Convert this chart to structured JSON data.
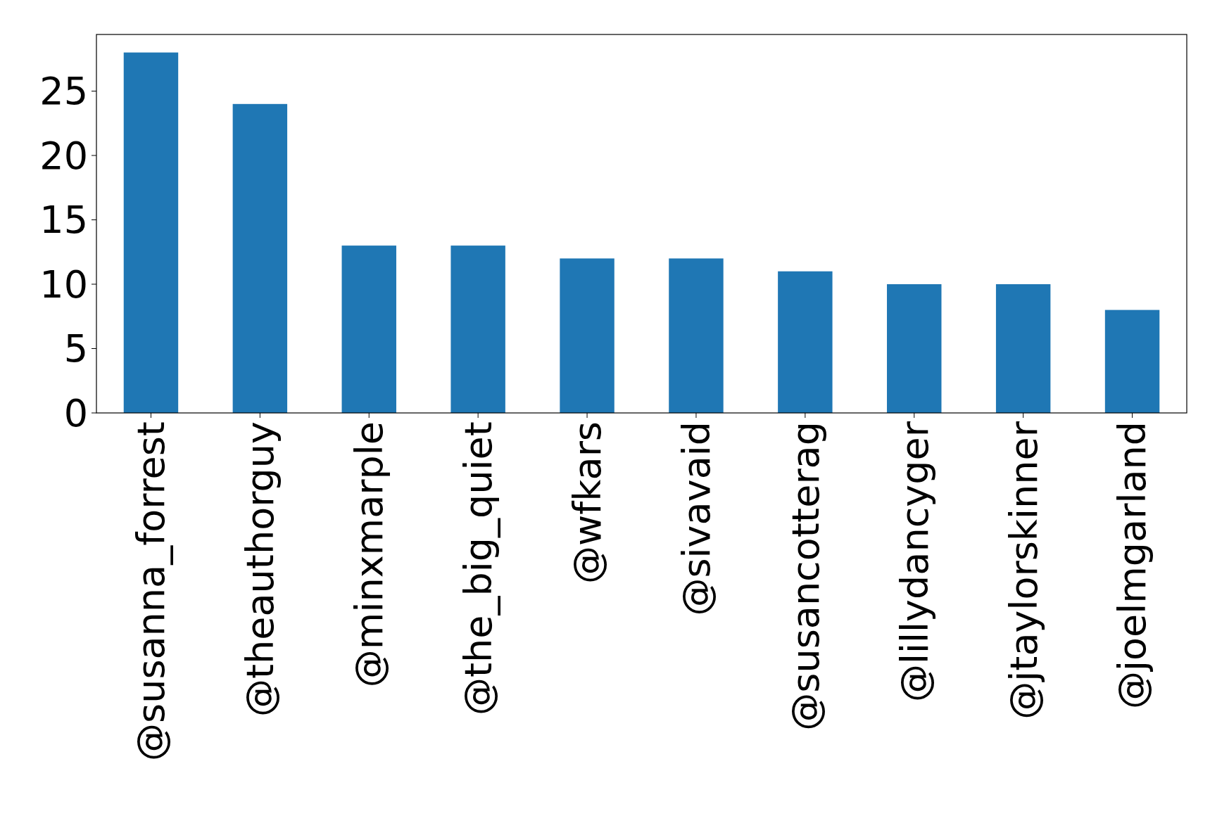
{
  "chart_data": {
    "type": "bar",
    "categories": [
      "@susanna_forrest",
      "@theauthorguy",
      "@minxmarple",
      "@the_big_quiet",
      "@wfkars",
      "@sivavaid",
      "@susancotterag",
      "@lillydancyger",
      "@jtaylorskinner",
      "@joelmgarland"
    ],
    "values": [
      28,
      24,
      13,
      13,
      12,
      12,
      11,
      10,
      10,
      8
    ],
    "color": "#1f77b4",
    "ylim": [
      0,
      29.4
    ],
    "yticks": [
      0,
      5,
      10,
      15,
      20,
      25
    ]
  }
}
